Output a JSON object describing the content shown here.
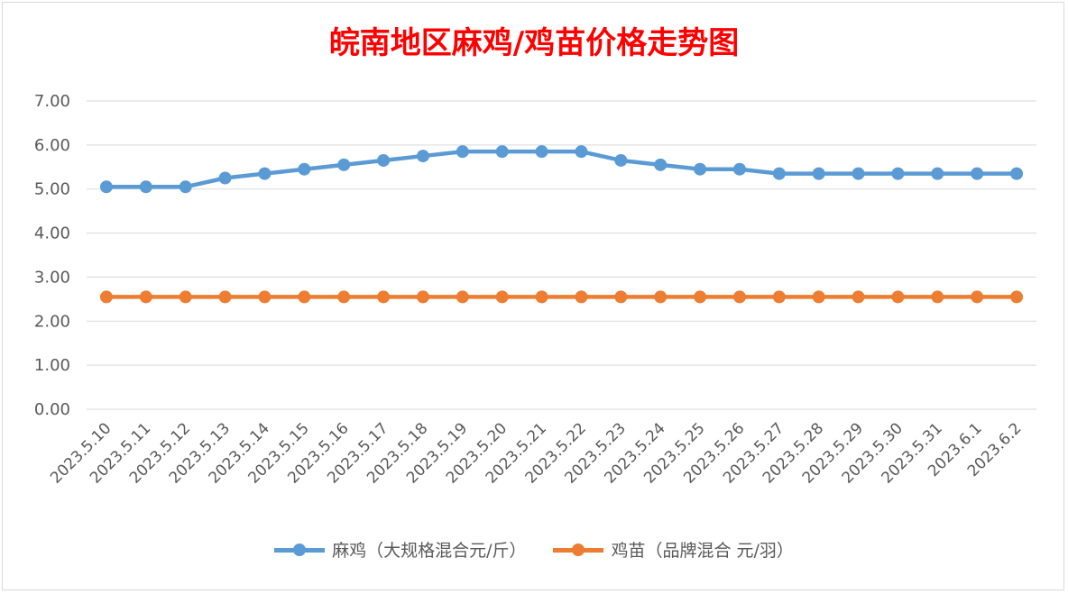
{
  "chart_data": {
    "type": "line",
    "title": "皖南地区麻鸡/鸡苗价格走势图",
    "categories": [
      "2023.5.10",
      "2023.5.11",
      "2023.5.12",
      "2023.5.13",
      "2023.5.14",
      "2023.5.15",
      "2023.5.16",
      "2023.5.17",
      "2023.5.18",
      "2023.5.19",
      "2023.5.20",
      "2023.5.21",
      "2023.5.22",
      "2023.5.23",
      "2023.5.24",
      "2023.5.25",
      "2023.5.26",
      "2023.5.27",
      "2023.5.28",
      "2023.5.29",
      "2023.5.30",
      "2023.5.31",
      "2023.6.1",
      "2023.6.2"
    ],
    "series": [
      {
        "name": "麻鸡（大规格混合元/斤）",
        "color": "#5b9bd5",
        "values": [
          5.05,
          5.05,
          5.05,
          5.25,
          5.35,
          5.45,
          5.55,
          5.65,
          5.75,
          5.85,
          5.85,
          5.85,
          5.85,
          5.65,
          5.55,
          5.45,
          5.45,
          5.35,
          5.35,
          5.35,
          5.35,
          5.35,
          5.35,
          5.35
        ]
      },
      {
        "name": "鸡苗（品牌混合 元/羽）",
        "color": "#ed7d31",
        "values": [
          2.55,
          2.55,
          2.55,
          2.55,
          2.55,
          2.55,
          2.55,
          2.55,
          2.55,
          2.55,
          2.55,
          2.55,
          2.55,
          2.55,
          2.55,
          2.55,
          2.55,
          2.55,
          2.55,
          2.55,
          2.55,
          2.55,
          2.55,
          2.55
        ]
      }
    ],
    "ylim": [
      0,
      7
    ],
    "yticks": [
      "0.00",
      "1.00",
      "2.00",
      "3.00",
      "4.00",
      "5.00",
      "6.00",
      "7.00"
    ],
    "xlabel": "",
    "ylabel": "",
    "grid": true,
    "legend_position": "bottom"
  }
}
